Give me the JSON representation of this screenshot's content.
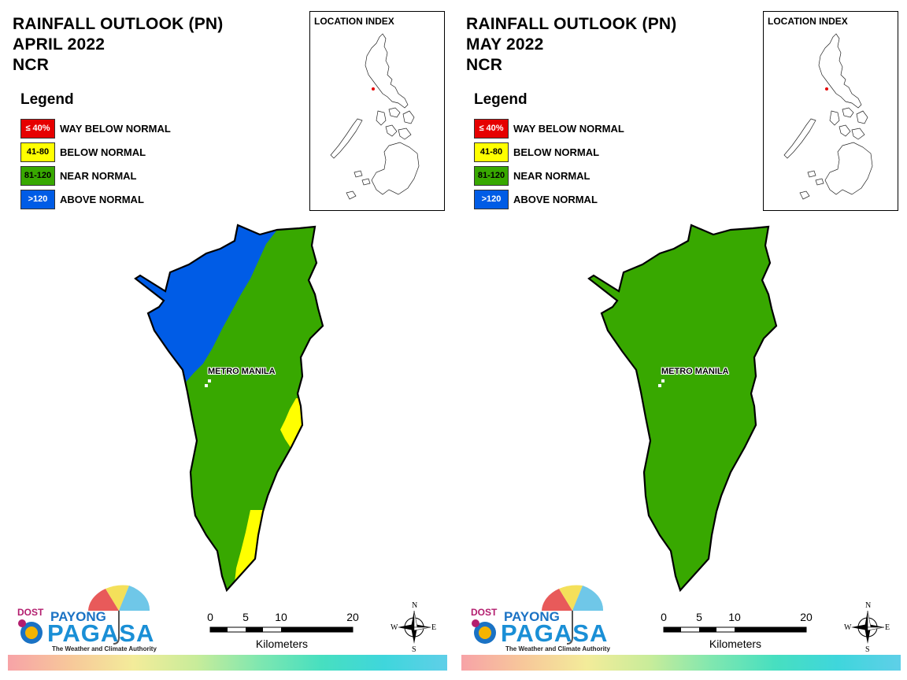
{
  "panels": [
    {
      "title": [
        "RAINFALL OUTLOOK (PN)",
        "APRIL 2022",
        "NCR"
      ],
      "legend_title": "Legend",
      "legend": [
        {
          "range": "≤ 40%",
          "label": "WAY BELOW NORMAL",
          "color": "#e60000",
          "text_color": "#ffffff"
        },
        {
          "range": "41-80",
          "label": "BELOW NORMAL",
          "color": "#ffff00",
          "text_color": "#000000"
        },
        {
          "range": "81-120",
          "label": "NEAR NORMAL",
          "color": "#38a800",
          "text_color": "#000000"
        },
        {
          "range": ">120",
          "label": "ABOVE NORMAL",
          "color": "#005ce6",
          "text_color": "#ffffff"
        }
      ],
      "location_index": "LOCATION INDEX",
      "place_label": "METRO MANILA",
      "map_classes": [
        "NEAR NORMAL",
        "ABOVE NORMAL",
        "BELOW NORMAL"
      ]
    },
    {
      "title": [
        "RAINFALL OUTLOOK (PN)",
        "MAY 2022",
        "NCR"
      ],
      "legend_title": "Legend",
      "legend": [
        {
          "range": "≤ 40%",
          "label": "WAY BELOW NORMAL",
          "color": "#e60000",
          "text_color": "#ffffff"
        },
        {
          "range": "41-80",
          "label": "BELOW NORMAL",
          "color": "#ffff00",
          "text_color": "#000000"
        },
        {
          "range": "81-120",
          "label": "NEAR NORMAL",
          "color": "#38a800",
          "text_color": "#000000"
        },
        {
          "range": ">120",
          "label": "ABOVE NORMAL",
          "color": "#005ce6",
          "text_color": "#ffffff"
        }
      ],
      "location_index": "LOCATION INDEX",
      "place_label": "METRO MANILA",
      "map_classes": [
        "NEAR NORMAL"
      ]
    }
  ],
  "logo": {
    "dost": "DOST",
    "payong": "PAYONG",
    "pagasa": "PAGASA",
    "tagline": "The Weather and Climate Authority"
  },
  "scale_bar": {
    "ticks": [
      "0",
      "5",
      "10",
      "20"
    ],
    "units": "Kilometers"
  },
  "compass": {
    "n": "N",
    "e": "E",
    "s": "S",
    "w": "W"
  }
}
